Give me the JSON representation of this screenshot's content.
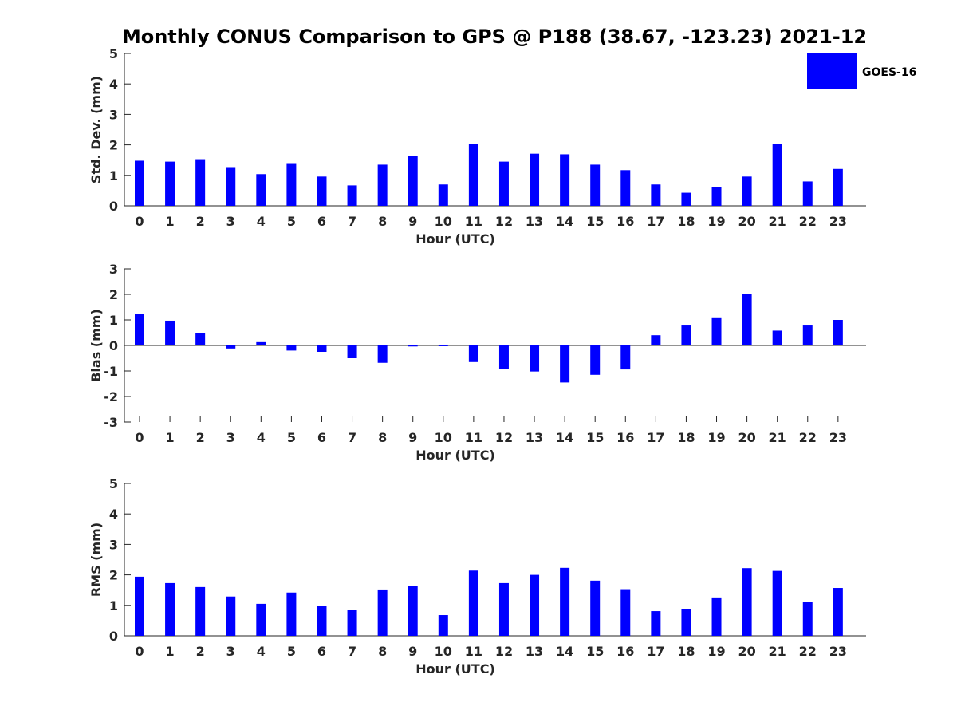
{
  "title": "Monthly CONUS Comparison to GPS @ P188 (38.67, -123.23) 2021-12",
  "legend": {
    "label": "GOES-16",
    "placement": "top-right"
  },
  "colors": {
    "bar": "#0000ff",
    "axis": "#262626",
    "title": "#000000"
  },
  "chart_data": [
    {
      "type": "bar",
      "xlabel": "Hour (UTC)",
      "ylabel": "Std. Dev. (mm)",
      "ylim": [
        0,
        5
      ],
      "yticks": [
        0,
        1,
        2,
        3,
        4,
        5
      ],
      "categories": [
        "0",
        "1",
        "2",
        "3",
        "4",
        "5",
        "6",
        "7",
        "8",
        "9",
        "10",
        "11",
        "12",
        "13",
        "14",
        "15",
        "16",
        "17",
        "18",
        "19",
        "20",
        "21",
        "22",
        "23"
      ],
      "series": [
        {
          "name": "GOES-16",
          "values": [
            1.48,
            1.45,
            1.53,
            1.27,
            1.04,
            1.4,
            0.96,
            0.67,
            1.35,
            1.64,
            0.7,
            2.03,
            1.45,
            1.71,
            1.69,
            1.35,
            1.17,
            0.7,
            0.43,
            0.62,
            0.96,
            2.03,
            0.8,
            1.21
          ]
        }
      ]
    },
    {
      "type": "bar",
      "xlabel": "Hour (UTC)",
      "ylabel": "Bias (mm)",
      "ylim": [
        -3,
        3
      ],
      "yticks": [
        -3,
        -2,
        -1,
        0,
        1,
        2,
        3
      ],
      "categories": [
        "0",
        "1",
        "2",
        "3",
        "4",
        "5",
        "6",
        "7",
        "8",
        "9",
        "10",
        "11",
        "12",
        "13",
        "14",
        "15",
        "16",
        "17",
        "18",
        "19",
        "20",
        "21",
        "22",
        "23"
      ],
      "series": [
        {
          "name": "GOES-16",
          "values": [
            1.25,
            0.97,
            0.5,
            -0.12,
            0.13,
            -0.2,
            -0.25,
            -0.5,
            -0.68,
            -0.04,
            -0.03,
            -0.65,
            -0.93,
            -1.02,
            -1.45,
            -1.15,
            -0.94,
            0.4,
            0.78,
            1.1,
            2.0,
            0.58,
            0.78,
            1.0
          ]
        }
      ]
    },
    {
      "type": "bar",
      "xlabel": "Hour (UTC)",
      "ylabel": "RMS (mm)",
      "ylim": [
        0,
        5
      ],
      "yticks": [
        0,
        1,
        2,
        3,
        4,
        5
      ],
      "categories": [
        "0",
        "1",
        "2",
        "3",
        "4",
        "5",
        "6",
        "7",
        "8",
        "9",
        "10",
        "11",
        "12",
        "13",
        "14",
        "15",
        "16",
        "17",
        "18",
        "19",
        "20",
        "21",
        "22",
        "23"
      ],
      "series": [
        {
          "name": "GOES-16",
          "values": [
            1.94,
            1.73,
            1.6,
            1.29,
            1.05,
            1.42,
            0.99,
            0.84,
            1.52,
            1.63,
            0.68,
            2.14,
            1.73,
            2.0,
            2.23,
            1.81,
            1.53,
            0.81,
            0.89,
            1.26,
            2.22,
            2.13,
            1.1,
            1.57
          ]
        }
      ]
    }
  ]
}
